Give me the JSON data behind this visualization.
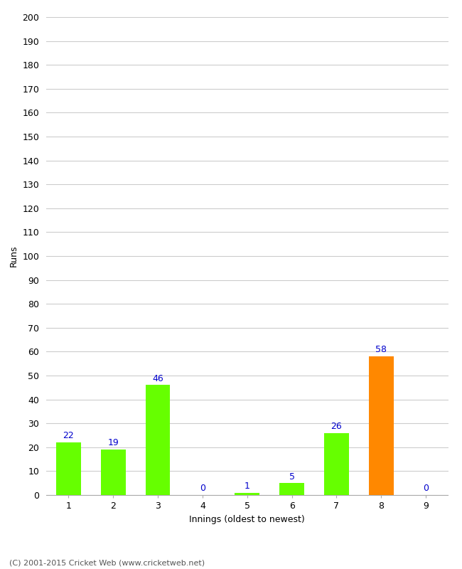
{
  "xlabel": "Innings (oldest to newest)",
  "ylabel": "Runs",
  "categories": [
    1,
    2,
    3,
    4,
    5,
    6,
    7,
    8,
    9
  ],
  "values": [
    22,
    19,
    46,
    0,
    1,
    5,
    26,
    58,
    0
  ],
  "bar_colors": [
    "#66ff00",
    "#66ff00",
    "#66ff00",
    "#66ff00",
    "#66ff00",
    "#66ff00",
    "#66ff00",
    "#ff8800",
    "#66ff00"
  ],
  "label_color": "#0000cc",
  "ylim": [
    0,
    200
  ],
  "yticks": [
    0,
    10,
    20,
    30,
    40,
    50,
    60,
    70,
    80,
    90,
    100,
    110,
    120,
    130,
    140,
    150,
    160,
    170,
    180,
    190,
    200
  ],
  "background_color": "#ffffff",
  "footer": "(C) 2001-2015 Cricket Web (www.cricketweb.net)",
  "grid_color": "#cccccc",
  "tick_label_fontsize": 9,
  "axis_label_fontsize": 9,
  "bar_width": 0.55
}
